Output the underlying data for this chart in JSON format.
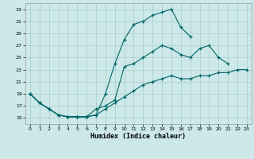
{
  "xlabel": "Humidex (Indice chaleur)",
  "background_color": "#cce8e8",
  "grid_color": "#b0d0d0",
  "line_color": "#006666",
  "xlim": [
    -0.5,
    23.5
  ],
  "ylim": [
    14.0,
    34.0
  ],
  "yticks": [
    15,
    17,
    19,
    21,
    23,
    25,
    27,
    29,
    31,
    33
  ],
  "xticks": [
    0,
    1,
    2,
    3,
    4,
    5,
    6,
    7,
    8,
    9,
    10,
    11,
    12,
    13,
    14,
    15,
    16,
    17,
    18,
    19,
    20,
    21,
    22,
    23
  ],
  "line1_x": [
    0,
    1,
    2,
    3,
    4,
    5,
    6,
    7,
    8,
    9,
    10,
    11,
    12,
    13,
    14,
    15,
    16,
    17
  ],
  "line1_y": [
    19,
    17.5,
    16.5,
    15.5,
    15.2,
    15.2,
    15.2,
    15.5,
    19.0,
    24.0,
    28.0,
    30.5,
    31.0,
    32.0,
    32.5,
    33.0,
    30.0,
    28.5
  ],
  "line2_x": [
    0,
    1,
    2,
    3,
    4,
    5,
    6,
    7,
    8,
    9,
    10,
    11,
    12,
    13,
    14,
    15,
    16,
    17,
    18,
    19,
    20,
    21
  ],
  "line2_y": [
    19,
    17.5,
    16.5,
    15.5,
    15.2,
    15.2,
    15.2,
    16.5,
    17.0,
    18.0,
    23.5,
    24.0,
    25.0,
    26.0,
    27.0,
    26.5,
    25.5,
    25.0,
    26.5,
    27.0,
    25.0,
    24.0
  ],
  "line3_x": [
    0,
    1,
    2,
    3,
    4,
    5,
    6,
    7,
    8,
    9,
    10,
    11,
    12,
    13,
    14,
    15,
    16,
    17,
    18,
    19,
    20,
    21,
    22,
    23
  ],
  "line3_y": [
    19,
    17.5,
    16.5,
    15.5,
    15.2,
    15.2,
    15.2,
    15.5,
    16.5,
    17.5,
    18.5,
    19.5,
    20.5,
    21.0,
    21.5,
    22.0,
    21.5,
    21.5,
    22.0,
    22.0,
    22.5,
    22.5,
    23.0,
    23.0
  ]
}
